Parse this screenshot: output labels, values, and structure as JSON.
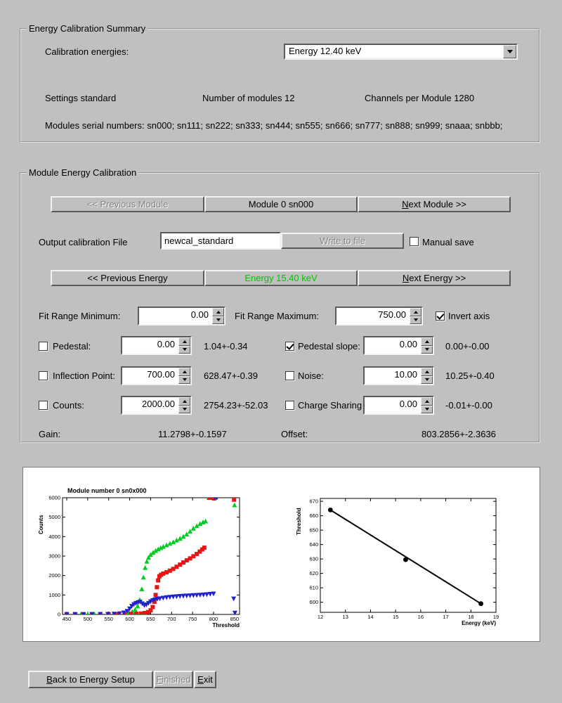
{
  "summary": {
    "title": "Energy Calibration Summary",
    "calibration_energies_label": "Calibration energies:",
    "energy_dropdown_value": "Energy 12.40 keV",
    "settings": "Settings standard",
    "num_modules": "Number of modules 12",
    "channels_per_module": "Channels per Module 1280",
    "serials": "Modules serial numbers: sn000; sn111; sn222; sn333; sn444; sn555; sn666; sn777; sn888; sn999; snaaa; snbbb;"
  },
  "module_cal": {
    "title": "Module Energy Calibration",
    "prev_module": {
      "label": "<< Previous Module",
      "enabled": false
    },
    "module_button": {
      "label": "Module 0 sn000",
      "enabled": true
    },
    "next_module": {
      "label": "Next Module >>",
      "hotkey": "N",
      "enabled": true
    },
    "output_file_label": "Output calibration File",
    "output_file_value": "newcal_standard",
    "write_to_file": {
      "label": "Write to file",
      "enabled": false
    },
    "manual_save": {
      "label": "Manual save",
      "checked": false
    },
    "prev_energy": {
      "label": "<< Previous Energy",
      "enabled": true
    },
    "energy_button": {
      "label": "Energy 15.40 keV",
      "enabled": true,
      "color": "#00c400"
    },
    "next_energy": {
      "label": "Next Energy >>",
      "hotkey": "N",
      "enabled": true
    },
    "fit_range_min": {
      "label": "Fit Range Minimum:",
      "value": "0.00"
    },
    "fit_range_max": {
      "label": "Fit Range Maximum:",
      "value": "750.00"
    },
    "invert_axis": {
      "label": "Invert axis",
      "checked": true
    },
    "pedestal": {
      "label": "Pedestal:",
      "checked": false,
      "value": "0.00",
      "result": "1.04+-0.34"
    },
    "pedestal_slope": {
      "label": "Pedestal slope:",
      "checked": true,
      "value": "0.00",
      "result": "0.00+-0.00"
    },
    "inflection": {
      "label": "Inflection Point:",
      "checked": false,
      "value": "700.00",
      "result": "628.47+-0.39"
    },
    "noise": {
      "label": "Noise:",
      "checked": false,
      "value": "10.00",
      "result": "10.25+-0.40"
    },
    "counts": {
      "label": "Counts:",
      "checked": false,
      "value": "2000.00",
      "result": "2754.23+-52.03"
    },
    "charge_sharing": {
      "label": "Charge Sharing",
      "checked": false,
      "value": "0.00",
      "result": "-0.01+-0.00"
    },
    "gain_label": "Gain:",
    "gain_value": "11.2798+-0.1597",
    "offset_label": "Offset:",
    "offset_value": "803.2856+-2.3636"
  },
  "footer": {
    "back": {
      "label": "Back to Energy Setup",
      "hotkey": "B",
      "enabled": true
    },
    "finished": {
      "label": "Finished",
      "hotkey": "F",
      "enabled": false
    },
    "exit": {
      "label": "Exit",
      "hotkey": "E",
      "enabled": true
    }
  },
  "chart_data": [
    {
      "type": "scatter",
      "title": "Module number 0 sn0x000",
      "xlabel": "Threshold",
      "ylabel": "Counts",
      "xlim": [
        440,
        862
      ],
      "ylim": [
        0,
        6000
      ],
      "xticks": [
        450,
        500,
        550,
        600,
        650,
        700,
        750,
        800,
        850
      ],
      "yticks": [
        0,
        1000,
        2000,
        3000,
        4000,
        5000,
        6000
      ],
      "grid": false,
      "legend": "none",
      "series": [
        {
          "name": "scurve-green",
          "marker": "triangle-up",
          "color": "#00cc22",
          "points": [
            [
              450,
              15
            ],
            [
              467,
              15
            ],
            [
              484,
              15
            ],
            [
              500,
              18
            ],
            [
              516,
              20
            ],
            [
              532,
              22
            ],
            [
              548,
              25
            ],
            [
              562,
              30
            ],
            [
              575,
              40
            ],
            [
              588,
              60
            ],
            [
              598,
              90
            ],
            [
              606,
              140
            ],
            [
              613,
              240
            ],
            [
              619,
              420
            ],
            [
              624,
              750
            ],
            [
              629,
              1300
            ],
            [
              633,
              1900
            ],
            [
              637,
              2400
            ],
            [
              641,
              2720
            ],
            [
              645,
              2920
            ],
            [
              650,
              3070
            ],
            [
              656,
              3180
            ],
            [
              662,
              3270
            ],
            [
              668,
              3350
            ],
            [
              674,
              3420
            ],
            [
              680,
              3480
            ],
            [
              688,
              3560
            ],
            [
              696,
              3640
            ],
            [
              704,
              3720
            ],
            [
              712,
              3810
            ],
            [
              720,
              3900
            ],
            [
              728,
              4000
            ],
            [
              736,
              4120
            ],
            [
              744,
              4270
            ],
            [
              752,
              4420
            ],
            [
              760,
              4550
            ],
            [
              768,
              4660
            ],
            [
              775,
              4740
            ],
            [
              781,
              4790
            ],
            [
              789,
              6000
            ],
            [
              795,
              6000
            ],
            [
              801,
              6000
            ],
            [
              850,
              5620
            ]
          ]
        },
        {
          "name": "scurve-red",
          "marker": "square",
          "color": "#e81515",
          "points": [
            [
              450,
              10
            ],
            [
              470,
              10
            ],
            [
              490,
              10
            ],
            [
              510,
              10
            ],
            [
              530,
              10
            ],
            [
              550,
              12
            ],
            [
              570,
              14
            ],
            [
              588,
              18
            ],
            [
              603,
              24
            ],
            [
              616,
              32
            ],
            [
              627,
              45
            ],
            [
              636,
              70
            ],
            [
              644,
              120
            ],
            [
              650,
              210
            ],
            [
              655,
              380
            ],
            [
              659,
              650
            ],
            [
              662,
              1000
            ],
            [
              665,
              1400
            ],
            [
              668,
              1750
            ],
            [
              671,
              1960
            ],
            [
              675,
              2040
            ],
            [
              680,
              2100
            ],
            [
              688,
              2170
            ],
            [
              696,
              2250
            ],
            [
              704,
              2340
            ],
            [
              712,
              2450
            ],
            [
              720,
              2560
            ],
            [
              728,
              2670
            ],
            [
              736,
              2780
            ],
            [
              744,
              2880
            ],
            [
              752,
              2990
            ],
            [
              760,
              3110
            ],
            [
              767,
              3230
            ],
            [
              773,
              3340
            ],
            [
              778,
              3430
            ],
            [
              790,
              6000
            ],
            [
              796,
              6000
            ],
            [
              801,
              5960
            ],
            [
              849,
              5900
            ]
          ]
        },
        {
          "name": "scurve-blue",
          "marker": "triangle-down",
          "color": "#2222cc",
          "points": [
            [
              450,
              8
            ],
            [
              470,
              8
            ],
            [
              490,
              10
            ],
            [
              510,
              12
            ],
            [
              530,
              15
            ],
            [
              548,
              20
            ],
            [
              563,
              28
            ],
            [
              576,
              45
            ],
            [
              586,
              90
            ],
            [
              594,
              170
            ],
            [
              600,
              300
            ],
            [
              605,
              430
            ],
            [
              610,
              520
            ],
            [
              615,
              580
            ],
            [
              620,
              620
            ],
            [
              625,
              645
            ],
            [
              630,
              560
            ],
            [
              635,
              470
            ],
            [
              640,
              505
            ],
            [
              645,
              585
            ],
            [
              650,
              665
            ],
            [
              655,
              725
            ],
            [
              660,
              765
            ],
            [
              666,
              795
            ],
            [
              672,
              820
            ],
            [
              680,
              850
            ],
            [
              688,
              875
            ],
            [
              696,
              895
            ],
            [
              704,
              913
            ],
            [
              712,
              928
            ],
            [
              720,
              940
            ],
            [
              728,
              952
            ],
            [
              736,
              963
            ],
            [
              744,
              973
            ],
            [
              752,
              983
            ],
            [
              760,
              993
            ],
            [
              768,
              1003
            ],
            [
              776,
              1016
            ],
            [
              784,
              1032
            ],
            [
              792,
              1050
            ],
            [
              800,
              1068
            ],
            [
              803,
              6000
            ],
            [
              808,
              6000
            ],
            [
              848,
              810
            ],
            [
              851,
              80
            ]
          ]
        }
      ]
    },
    {
      "type": "line",
      "title": "",
      "xlabel": "Energy (keV)",
      "ylabel": "Threshold",
      "xlim": [
        12,
        19
      ],
      "ylim": [
        593,
        672
      ],
      "xticks": [
        12,
        13,
        14,
        15,
        16,
        17,
        18,
        19
      ],
      "yticks": [
        600,
        610,
        620,
        630,
        640,
        650,
        660,
        670
      ],
      "grid": false,
      "legend": "none",
      "series": [
        {
          "name": "linear-fit-line",
          "type": "line",
          "color": "#000000",
          "width": 2,
          "points": [
            [
              12.4,
              664
            ],
            [
              18.4,
              599
            ]
          ]
        },
        {
          "name": "calibration-points",
          "marker": "circle",
          "color": "#000000",
          "points": [
            [
              12.4,
              664
            ],
            [
              15.4,
              629.5
            ],
            [
              18.4,
              599
            ]
          ]
        }
      ]
    }
  ]
}
